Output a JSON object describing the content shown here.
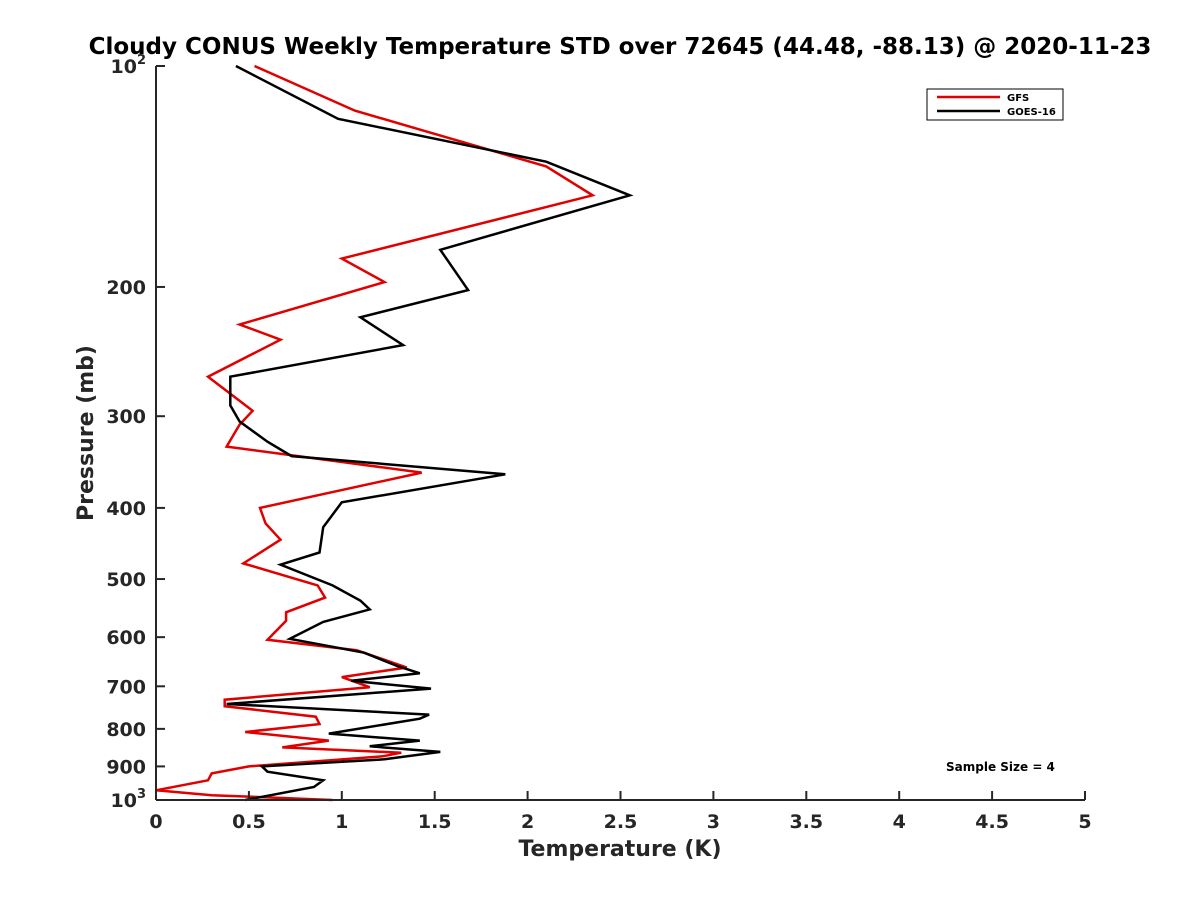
{
  "chart_data": {
    "type": "line",
    "title": "Cloudy CONUS Weekly Temperature STD over 72645 (44.48, -88.13) @ 2020-11-23",
    "xlabel": "Temperature (K)",
    "ylabel": "Pressure (mb)",
    "xlim": [
      0,
      5
    ],
    "ylim": [
      100,
      1000
    ],
    "y_scale": "log",
    "y_reversed": true,
    "grid": false,
    "legend_position": "top-right",
    "x_ticks": [
      0,
      0.5,
      1,
      1.5,
      2,
      2.5,
      3,
      3.5,
      4,
      4.5,
      5
    ],
    "x_tick_labels": [
      "0",
      "0.5",
      "1",
      "1.5",
      "2",
      "2.5",
      "3",
      "3.5",
      "4",
      "4.5",
      "5"
    ],
    "y_ticks": [
      {
        "value": 100,
        "base": "10",
        "exp": "2"
      },
      {
        "value": 200,
        "label": "200"
      },
      {
        "value": 300,
        "label": "300"
      },
      {
        "value": 400,
        "label": "400"
      },
      {
        "value": 500,
        "label": "500"
      },
      {
        "value": 600,
        "label": "600"
      },
      {
        "value": 700,
        "label": "700"
      },
      {
        "value": 800,
        "label": "800"
      },
      {
        "value": 900,
        "label": "900"
      },
      {
        "value": 1000,
        "base": "10",
        "exp": "3"
      }
    ],
    "annotation": "Sample Size = 4",
    "series": [
      {
        "name": "GFS",
        "color": "#e00000",
        "points": [
          [
            0.53,
            100
          ],
          [
            1.07,
            115
          ],
          [
            2.1,
            137
          ],
          [
            2.35,
            150
          ],
          [
            1.0,
            183
          ],
          [
            1.23,
            197
          ],
          [
            0.45,
            225
          ],
          [
            0.67,
            236
          ],
          [
            0.28,
            265
          ],
          [
            0.52,
            295
          ],
          [
            0.45,
            308
          ],
          [
            0.38,
            330
          ],
          [
            1.43,
            358
          ],
          [
            0.56,
            400
          ],
          [
            0.59,
            420
          ],
          [
            0.67,
            442
          ],
          [
            0.47,
            476
          ],
          [
            0.87,
            510
          ],
          [
            0.91,
            530
          ],
          [
            0.7,
            555
          ],
          [
            0.7,
            570
          ],
          [
            0.6,
            605
          ],
          [
            1.08,
            625
          ],
          [
            1.35,
            660
          ],
          [
            1.0,
            680
          ],
          [
            1.15,
            702
          ],
          [
            0.37,
            730
          ],
          [
            0.37,
            745
          ],
          [
            0.86,
            770
          ],
          [
            0.88,
            788
          ],
          [
            0.48,
            808
          ],
          [
            0.93,
            830
          ],
          [
            0.68,
            848
          ],
          [
            1.32,
            862
          ],
          [
            1.22,
            872
          ],
          [
            0.5,
            900
          ],
          [
            0.3,
            920
          ],
          [
            0.28,
            940
          ],
          [
            0.0,
            970
          ],
          [
            0.3,
            985
          ],
          [
            0.95,
            1000
          ]
        ]
      },
      {
        "name": "GOES-16",
        "color": "#000000",
        "points": [
          [
            0.43,
            100
          ],
          [
            0.98,
            118
          ],
          [
            2.1,
            135
          ],
          [
            2.55,
            150
          ],
          [
            1.53,
            178
          ],
          [
            1.68,
            202
          ],
          [
            1.1,
            220
          ],
          [
            1.33,
            240
          ],
          [
            0.4,
            265
          ],
          [
            0.4,
            290
          ],
          [
            0.45,
            305
          ],
          [
            0.6,
            325
          ],
          [
            0.73,
            340
          ],
          [
            1.88,
            360
          ],
          [
            1.0,
            393
          ],
          [
            0.9,
            425
          ],
          [
            0.88,
            460
          ],
          [
            0.67,
            478
          ],
          [
            0.95,
            510
          ],
          [
            1.1,
            535
          ],
          [
            1.15,
            550
          ],
          [
            0.9,
            572
          ],
          [
            0.72,
            603
          ],
          [
            1.12,
            630
          ],
          [
            1.3,
            657
          ],
          [
            1.42,
            672
          ],
          [
            1.05,
            688
          ],
          [
            1.48,
            705
          ],
          [
            0.38,
            740
          ],
          [
            1.47,
            765
          ],
          [
            1.42,
            775
          ],
          [
            0.93,
            812
          ],
          [
            1.42,
            830
          ],
          [
            1.15,
            845
          ],
          [
            1.53,
            860
          ],
          [
            1.23,
            880
          ],
          [
            0.57,
            900
          ],
          [
            0.6,
            915
          ],
          [
            0.9,
            940
          ],
          [
            0.85,
            960
          ],
          [
            0.48,
            1000
          ]
        ]
      }
    ]
  }
}
